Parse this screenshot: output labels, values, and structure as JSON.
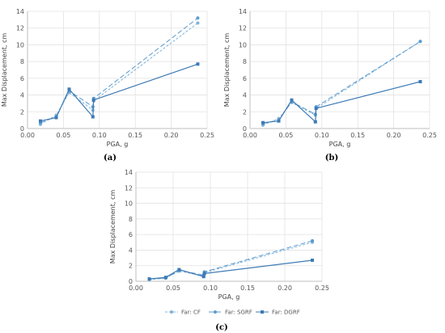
{
  "colors": {
    "CF": "#7fb3d9",
    "SGRF": "#5b9bcf",
    "DGRF": "#3d7ab5",
    "grid": "#e2e2e2",
    "axis": "#bfbfbf"
  },
  "legend": [
    {
      "label": "Far: CF",
      "color": "#7fb3d9",
      "dash": "3,2",
      "marker": "circle"
    },
    {
      "label": "Far: SGRF",
      "color": "#5b9bcf",
      "dash": "6,3",
      "marker": "circle"
    },
    {
      "label": "Far: DGRF",
      "color": "#3d7ab5",
      "dash": "none",
      "marker": "square"
    }
  ],
  "chart_data": [
    {
      "type": "line",
      "caption": "(a)",
      "xlabel": "PGA, g",
      "ylabel": "Max Displacement, cm",
      "xlim": [
        0,
        0.25
      ],
      "ylim": [
        0,
        14
      ],
      "xticks": [
        "0.00",
        "0.05",
        "0.10",
        "0.15",
        "0.20",
        "0.25"
      ],
      "yticks": [
        "0",
        "2",
        "4",
        "6",
        "8",
        "10",
        "12",
        "14"
      ],
      "grid": true,
      "series": [
        {
          "name": "Far: CF",
          "x": [
            0.018,
            0.04,
            0.058,
            0.091,
            0.092,
            0.237
          ],
          "y": [
            0.5,
            1.6,
            4.3,
            2.2,
            3.3,
            12.6
          ]
        },
        {
          "name": "Far: SGRF",
          "x": [
            0.018,
            0.04,
            0.058,
            0.091,
            0.092,
            0.237
          ],
          "y": [
            0.7,
            1.4,
            4.5,
            2.6,
            3.6,
            13.2
          ]
        },
        {
          "name": "Far: DGRF",
          "x": [
            0.018,
            0.04,
            0.058,
            0.091,
            0.092,
            0.237
          ],
          "y": [
            0.9,
            1.3,
            4.7,
            1.4,
            3.4,
            7.7
          ]
        }
      ]
    },
    {
      "type": "line",
      "caption": "(b)",
      "xlabel": "PGA, g",
      "ylabel": "Max Displacement, cm",
      "xlim": [
        0,
        0.25
      ],
      "ylim": [
        0,
        14
      ],
      "xticks": [
        "0.00",
        "0.05",
        "0.10",
        "0.15",
        "0.20",
        "0.25"
      ],
      "yticks": [
        "0",
        "2",
        "4",
        "6",
        "8",
        "10",
        "12",
        "14"
      ],
      "grid": true,
      "series": [
        {
          "name": "Far: CF",
          "x": [
            0.018,
            0.04,
            0.058,
            0.091,
            0.092,
            0.237
          ],
          "y": [
            0.4,
            1.2,
            3.1,
            1.6,
            2.4,
            10.4
          ]
        },
        {
          "name": "Far: SGRF",
          "x": [
            0.018,
            0.04,
            0.058,
            0.091,
            0.092,
            0.237
          ],
          "y": [
            0.6,
            1.0,
            3.2,
            1.7,
            2.6,
            10.4
          ]
        },
        {
          "name": "Far: DGRF",
          "x": [
            0.018,
            0.04,
            0.058,
            0.091,
            0.092,
            0.237
          ],
          "y": [
            0.7,
            0.9,
            3.4,
            0.8,
            2.4,
            5.6
          ]
        }
      ]
    },
    {
      "type": "line",
      "caption": "(c)",
      "xlabel": "PGA, g",
      "ylabel": "Max Displacement, cm",
      "xlim": [
        0,
        0.25
      ],
      "ylim": [
        0,
        14
      ],
      "xticks": [
        "0.00",
        "0.05",
        "0.10",
        "0.15",
        "0.20",
        "0.25"
      ],
      "yticks": [
        "0",
        "2",
        "4",
        "6",
        "8",
        "10",
        "12",
        "14"
      ],
      "grid": true,
      "series": [
        {
          "name": "Far: CF",
          "x": [
            0.018,
            0.04,
            0.058,
            0.091,
            0.092,
            0.237
          ],
          "y": [
            0.2,
            0.4,
            1.3,
            0.7,
            1.1,
            5.0
          ]
        },
        {
          "name": "Far: SGRF",
          "x": [
            0.018,
            0.04,
            0.058,
            0.091,
            0.092,
            0.237
          ],
          "y": [
            0.3,
            0.4,
            1.4,
            0.8,
            1.2,
            5.2
          ]
        },
        {
          "name": "Far: DGRF",
          "x": [
            0.018,
            0.04,
            0.058,
            0.091,
            0.092,
            0.237
          ],
          "y": [
            0.3,
            0.5,
            1.5,
            0.6,
            1.0,
            2.7
          ]
        }
      ]
    }
  ]
}
